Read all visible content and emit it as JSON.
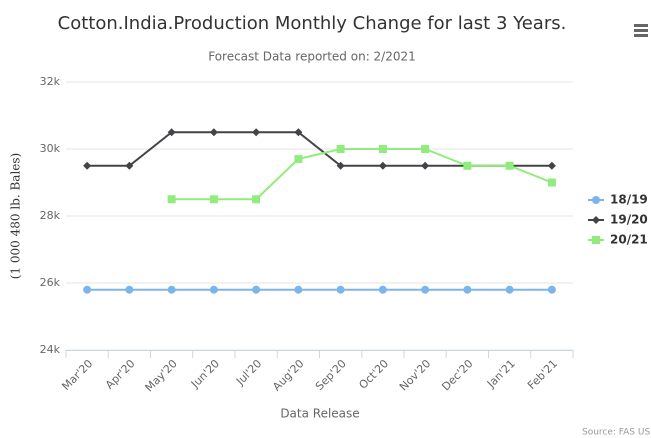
{
  "chart_data": {
    "type": "line",
    "title": "Cotton.India.Production Monthly Change for last 3 Years.",
    "subtitle": "Forecast Data reported on: 2/2021",
    "x_label": "Data Release",
    "y_label": "(1 000 480 lb. Bales)",
    "credit": "Source: FAS USDA",
    "categories": [
      "Mar'20",
      "Apr'20",
      "May'20",
      "Jun'20",
      "Jul'20",
      "Aug'20",
      "Sep'20",
      "Oct'20",
      "Nov'20",
      "Dec'20",
      "Jan'21",
      "Feb'21"
    ],
    "series": [
      {
        "name": "18/19",
        "color": "#7cb5ec",
        "marker": "circle",
        "values": [
          25800,
          25800,
          25800,
          25800,
          25800,
          25800,
          25800,
          25800,
          25800,
          25800,
          25800,
          25800
        ]
      },
      {
        "name": "19/20",
        "color": "#434348",
        "marker": "diamond",
        "values": [
          29500,
          29500,
          30500,
          30500,
          30500,
          30500,
          29500,
          29500,
          29500,
          29500,
          29500,
          29500
        ]
      },
      {
        "name": "20/21",
        "color": "#90ed7d",
        "marker": "square",
        "values": [
          null,
          null,
          28500,
          28500,
          28500,
          29700,
          30000,
          30000,
          30000,
          29500,
          29500,
          29000
        ]
      }
    ],
    "ylim": [
      24000,
      32000
    ],
    "yticks": [
      {
        "value": 24000,
        "label": "24k"
      },
      {
        "value": 26000,
        "label": "26k"
      },
      {
        "value": 28000,
        "label": "28k"
      },
      {
        "value": 30000,
        "label": "30k"
      },
      {
        "value": 32000,
        "label": "32k"
      }
    ],
    "grid": true,
    "legend": "right"
  }
}
